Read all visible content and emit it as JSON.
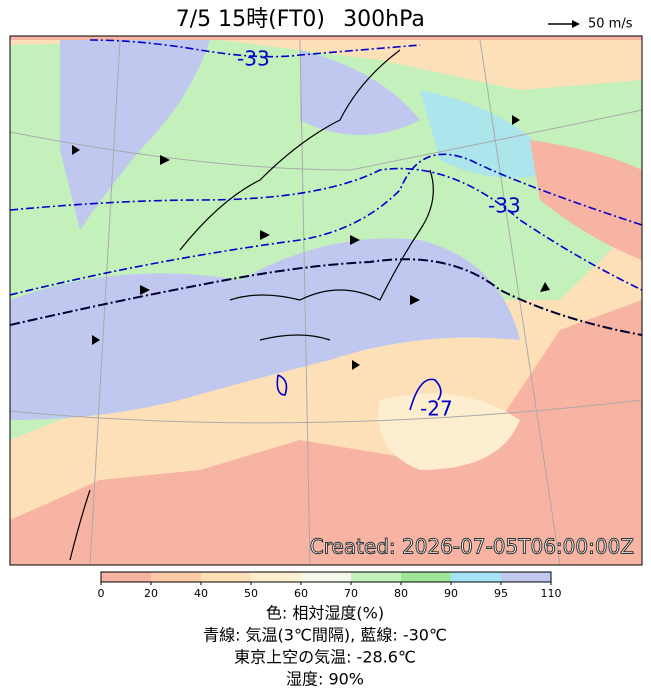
{
  "header": {
    "title": "7/5 15時(FT0)",
    "level": "300hPa",
    "wind_legend": "50 m/s"
  },
  "map": {
    "contour_labels": [
      "-33",
      "-33",
      "-27"
    ],
    "created": "Created: 2026-07-05T06:00:00Z"
  },
  "colorbar": {
    "ticks": [
      0,
      20,
      40,
      50,
      60,
      70,
      80,
      90,
      95,
      110
    ],
    "colors": [
      "#f8b4a2",
      "#fccaa8",
      "#fde0b8",
      "#fdeecf",
      "#f4f8e8",
      "#c4f0bc",
      "#9ee49a",
      "#a6e2f8",
      "#c0c8f0"
    ]
  },
  "caption": [
    "色: 相対湿度(%)",
    "青線: 気温(3℃間隔), 藍線: -30℃",
    "東京上空の気温: -28.6℃",
    "湿度: 90%"
  ]
}
